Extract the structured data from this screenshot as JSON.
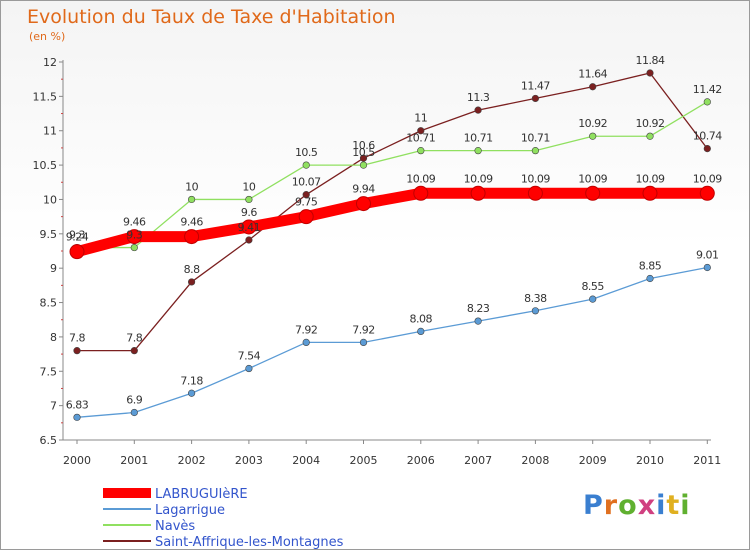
{
  "chart_data": {
    "type": "line",
    "title": "Evolution du Taux de Taxe d'Habitation",
    "subtitle": "(en %)",
    "x": [
      "2000",
      "2001",
      "2002",
      "2003",
      "2004",
      "2005",
      "2006",
      "2007",
      "2008",
      "2009",
      "2010",
      "2011"
    ],
    "ylim": [
      6.5,
      12
    ],
    "yticks": [
      "6.5",
      "7",
      "7.5",
      "8",
      "8.5",
      "9",
      "9.5",
      "10",
      "10.5",
      "11",
      "11.5",
      "12"
    ],
    "ytick_values": [
      6.5,
      7,
      7.5,
      8,
      8.5,
      9,
      9.5,
      10,
      10.5,
      11,
      11.5,
      12
    ],
    "grid": false,
    "legend_position": "bottom-left",
    "series": [
      {
        "name": "LABRUGUIèRE",
        "color": "#ff0000",
        "values": [
          9.24,
          9.46,
          9.46,
          9.6,
          9.75,
          9.94,
          10.09,
          10.09,
          10.09,
          10.09,
          10.09,
          10.09
        ],
        "labels": [
          "9.24",
          "9.46",
          "9.46",
          "9.6",
          "9.75",
          "9.94",
          "10.09",
          "10.09",
          "10.09",
          "10.09",
          "10.09",
          "10.09"
        ]
      },
      {
        "name": "Lagarrigue",
        "color": "#5b9bd5",
        "values": [
          6.83,
          6.9,
          7.18,
          7.54,
          7.92,
          7.92,
          8.08,
          8.23,
          8.38,
          8.55,
          8.85,
          9.01
        ],
        "labels": [
          "6.83",
          "6.9",
          "7.18",
          "7.54",
          "7.92",
          "7.92",
          "8.08",
          "8.23",
          "8.38",
          "8.55",
          "8.85",
          "9.01"
        ]
      },
      {
        "name": "Navès",
        "color": "#90e060",
        "values": [
          9.3,
          9.3,
          10,
          10,
          10.5,
          10.5,
          10.71,
          10.71,
          10.71,
          10.92,
          10.92,
          11.42
        ],
        "labels": [
          "9.3",
          "9.3",
          "10",
          "10",
          "10.5",
          "10.5",
          "10.71",
          "10.71",
          "10.71",
          "10.92",
          "10.92",
          "11.42"
        ]
      },
      {
        "name": "Saint-Affrique-les-Montagnes",
        "color": "#7b2020",
        "values": [
          7.8,
          7.8,
          8.8,
          9.41,
          10.07,
          10.6,
          11,
          11.3,
          11.47,
          11.64,
          11.84,
          10.74
        ],
        "labels": [
          "7.8",
          "7.8",
          "8.8",
          "9.41",
          "10.07",
          "10.6",
          "11",
          "11.3",
          "11.47",
          "11.64",
          "11.84",
          "10.74"
        ]
      }
    ]
  },
  "logo": {
    "letters": [
      "P",
      "r",
      "o",
      "x",
      "i",
      "t",
      "i"
    ],
    "colors": [
      "#3a7fd0",
      "#e07020",
      "#60b030",
      "#d04080",
      "#3a7fd0",
      "#e0b020",
      "#60b030"
    ]
  }
}
